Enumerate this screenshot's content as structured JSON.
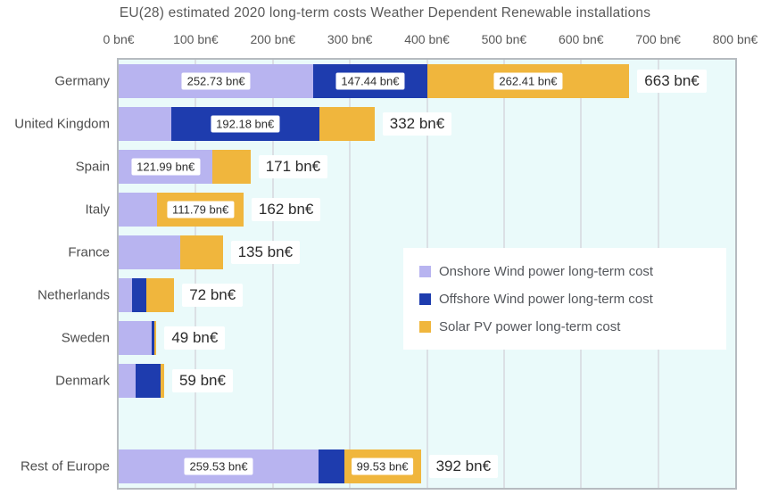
{
  "title": "EU(28) estimated 2020 long-term costs Weather Dependent Renewable installations",
  "chart_data": {
    "type": "bar",
    "orientation": "horizontal",
    "stacked": true,
    "unit": "bn€",
    "xlim": [
      0,
      800
    ],
    "grid": true,
    "plot_background": "#eafafa",
    "x_ticks": [
      "0 bn€",
      "100 bn€",
      "200 bn€",
      "300 bn€",
      "400 bn€",
      "500 bn€",
      "600 bn€",
      "700 bn€",
      "800 bn€"
    ],
    "series": [
      {
        "key": "onshore",
        "name": "Onshore Wind power long-term cost",
        "color": "#b8b4f0"
      },
      {
        "key": "offshore",
        "name": "Offshore Wind power long-term cost",
        "color": "#1e3cae"
      },
      {
        "key": "solar",
        "name": "Solar PV  power long-term cost",
        "color": "#f0b63d"
      }
    ],
    "rows": [
      {
        "label": "Germany",
        "onshore": 252.73,
        "offshore": 147.44,
        "solar": 262.41,
        "total": "663 bn€",
        "value_labels": {
          "onshore": "252.73 bn€",
          "offshore": "147.44 bn€",
          "solar": "262.41 bn€"
        }
      },
      {
        "label": "United Kingdom",
        "onshore": 68,
        "offshore": 192.18,
        "solar": 71.8,
        "total": "332 bn€",
        "value_labels": {
          "offshore": "192.18 bn€"
        }
      },
      {
        "label": "Spain",
        "onshore": 121.99,
        "offshore": 0,
        "solar": 49,
        "total": "171 bn€",
        "value_labels": {
          "onshore": "121.99 bn€"
        }
      },
      {
        "label": "Italy",
        "onshore": 50.2,
        "offshore": 0,
        "solar": 111.79,
        "total": "162 bn€",
        "value_labels": {
          "solar": "111.79 bn€"
        }
      },
      {
        "label": "France",
        "onshore": 80,
        "offshore": 0,
        "solar": 55,
        "total": "135 bn€",
        "value_labels": {}
      },
      {
        "label": "Netherlands",
        "onshore": 17,
        "offshore": 19,
        "solar": 36,
        "total": "72 bn€",
        "value_labels": {}
      },
      {
        "label": "Sweden",
        "onshore": 43,
        "offshore": 3,
        "solar": 3,
        "total": "49 bn€",
        "value_labels": {}
      },
      {
        "label": "Denmark",
        "onshore": 22,
        "offshore": 32,
        "solar": 5,
        "total": "59 bn€",
        "value_labels": {}
      },
      {
        "label": "",
        "onshore": 0,
        "offshore": 0,
        "solar": 0,
        "total": "",
        "value_labels": {}
      },
      {
        "label": "Rest of Europe",
        "onshore": 259.53,
        "offshore": 32.94,
        "solar": 99.53,
        "total": "392 bn€",
        "value_labels": {
          "onshore": "259.53 bn€",
          "solar": "99.53 bn€"
        }
      }
    ],
    "legend_position": "inside-right"
  }
}
